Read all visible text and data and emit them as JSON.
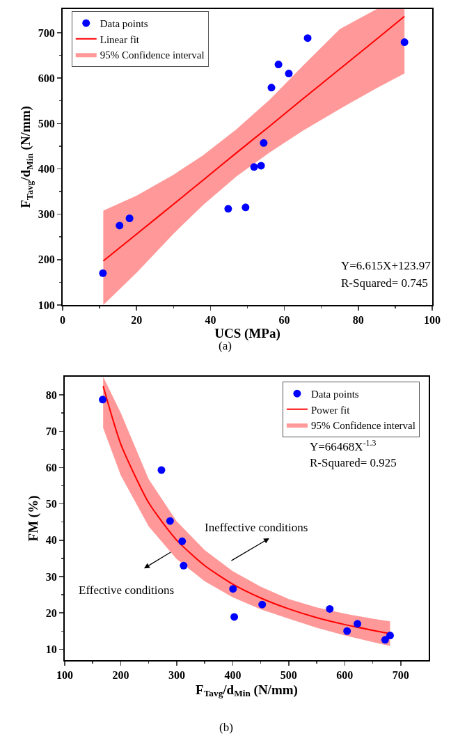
{
  "chart_data": [
    {
      "type": "scatter",
      "xlabel": "UCS (MPa)",
      "ylabel": "F$_{Tavg}$/d$_{Min}$ (N/mm)",
      "legend": "top left",
      "xlim": [
        0,
        100
      ],
      "ylim": [
        100,
        752
      ],
      "xticks": [
        0,
        {
          "value": 10,
          "label": null
        },
        20,
        {
          "value": 30,
          "label": null
        },
        40,
        {
          "value": 50,
          "label": null
        },
        60,
        {
          "value": 70,
          "label": null
        },
        80,
        {
          "value": 90,
          "label": null
        },
        100
      ],
      "yticks": [
        100,
        {
          "value": 150,
          "label": null
        },
        200,
        {
          "value": 250,
          "label": null
        },
        300,
        {
          "value": 350,
          "label": null
        },
        400,
        {
          "value": 450,
          "label": null
        },
        500,
        {
          "value": 550,
          "label": null
        },
        600,
        {
          "value": 650,
          "label": null
        },
        700
      ],
      "annotations": [
        "95% Confidence interval",
        "Y=6.615X+123.97",
        "R-Squared= 0.745",
        "(a)"
      ],
      "series": [
        {
          "name": "Data points",
          "type": "scatter",
          "marker": "circle",
          "color": "#0000ff",
          "x": [
            10.9,
            15.4,
            18.1,
            44.8,
            49.5,
            51.8,
            53.7,
            54.4,
            56.5,
            58.4,
            61.2,
            66.3,
            92.5
          ],
          "values": [
            170,
            275,
            291,
            312,
            315,
            404,
            407,
            457,
            579,
            630,
            610,
            688,
            679
          ]
        },
        {
          "name": "Linear fit",
          "type": "line",
          "marker": "none",
          "color": "#ff0000",
          "line_style": "solid",
          "x": [
            11,
            20,
            30,
            38,
            47,
            56,
            65,
            75,
            85,
            92.5
          ],
          "values": [
            197,
            256,
            322,
            375,
            435,
            494,
            554,
            620,
            686,
            736
          ],
          "lower": [
            100,
            171,
            257,
            320,
            383,
            436,
            484,
            532,
            578,
            610
          ],
          "upper": [
            308,
            341,
            387,
            430,
            487,
            552,
            627,
            708,
            752,
            752
          ]
        }
      ]
    },
    {
      "type": "scatter",
      "xlabel": "F$_{Tavg}$/d$_{Min}$ (N/mm)",
      "ylabel": "FM (%)",
      "legend": "top right",
      "xlim": [
        100,
        750
      ],
      "ylim": [
        7,
        85
      ],
      "xticks": [
        100,
        {
          "value": 150,
          "label": null
        },
        200,
        {
          "value": 250,
          "label": null
        },
        300,
        {
          "value": 350,
          "label": null
        },
        400,
        {
          "value": 450,
          "label": null
        },
        500,
        {
          "value": 550,
          "label": null
        },
        600,
        {
          "value": 650,
          "label": null
        },
        700
      ],
      "yticks": [
        10,
        {
          "value": 15,
          "label": null
        },
        20,
        {
          "value": 25,
          "label": null
        },
        30,
        {
          "value": 35,
          "label": null
        },
        40,
        {
          "value": 45,
          "label": null
        },
        50,
        {
          "value": 55,
          "label": null
        },
        60,
        {
          "value": 65,
          "label": null
        },
        70,
        {
          "value": 75,
          "label": null
        },
        80
      ],
      "annotations": [
        "95% Confidence interval",
        "Y=66468X$^{-1.3}$",
        "R-Squared= 0.925",
        "Ineffective conditions",
        "Effective conditions",
        "(b)"
      ],
      "series": [
        {
          "name": "Data points",
          "type": "scatter",
          "marker": "circle",
          "color": "#0000ff",
          "x": [
            167.8,
            272.7,
            288.1,
            309.7,
            312.3,
            400.5,
            402.7,
            452.6,
            573.3,
            604.2,
            622.7,
            672.1,
            681.0
          ],
          "values": [
            78.7,
            59.3,
            45.3,
            39.7,
            33.0,
            26.6,
            18.9,
            22.3,
            21.1,
            15.0,
            17.0,
            12.6,
            13.8
          ]
        },
        {
          "name": "Power fit",
          "type": "line",
          "marker": "none",
          "color": "#ff0000",
          "line_style": "solid",
          "x": [
            168.6,
            200,
            250,
            300,
            350,
            400,
            450,
            500,
            550,
            600,
            650,
            681
          ],
          "values": [
            82.4,
            66.5,
            50.3,
            40.0,
            33.0,
            27.9,
            24.1,
            21.1,
            18.7,
            16.8,
            15.2,
            14.3
          ],
          "lower": [
            70.9,
            57.9,
            43.8,
            34.8,
            28.7,
            24.3,
            21.0,
            18.4,
            15.9,
            13.8,
            12.0,
            10.9
          ],
          "upper": [
            85,
            75.1,
            56.8,
            45.2,
            37.3,
            31.5,
            27.2,
            23.8,
            21.5,
            19.8,
            18.4,
            17.7
          ]
        }
      ]
    }
  ]
}
